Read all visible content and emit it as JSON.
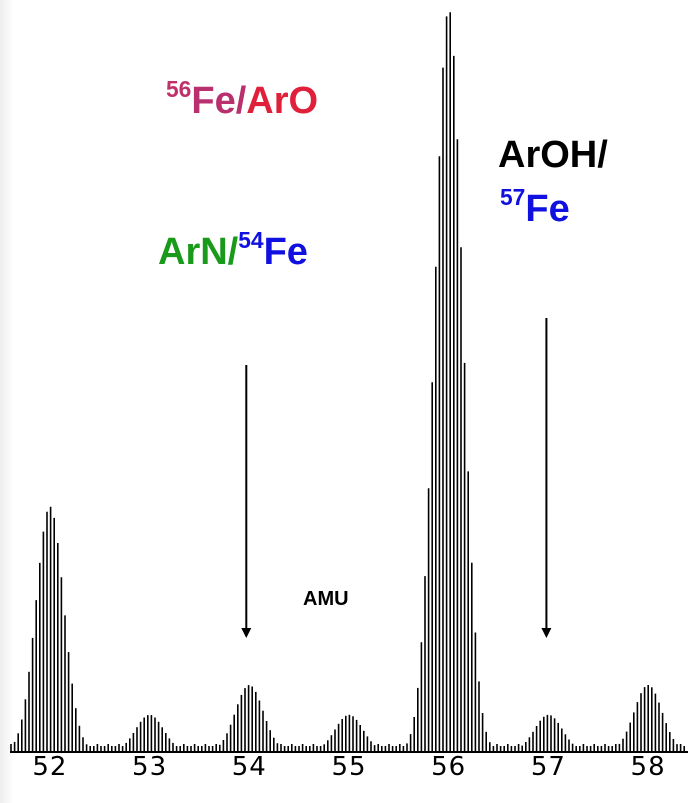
{
  "chart_data": {
    "type": "bar",
    "xlabel": "AMU",
    "ylabel": "",
    "title": "",
    "xlim": [
      51.6,
      58.4
    ],
    "ylim": [
      0,
      1
    ],
    "ticks": [
      "52",
      "53",
      "54",
      "55",
      "56",
      "57",
      "58"
    ],
    "tick_values": [
      52,
      53,
      54,
      55,
      56,
      57,
      58
    ],
    "peaks": [
      {
        "mass": 52,
        "relative_height": 0.33
      },
      {
        "mass": 53,
        "relative_height": 0.05
      },
      {
        "mass": 54,
        "relative_height": 0.09
      },
      {
        "mass": 55,
        "relative_height": 0.05
      },
      {
        "mass": 56,
        "relative_height": 1.0
      },
      {
        "mass": 57,
        "relative_height": 0.05
      },
      {
        "mass": 58,
        "relative_height": 0.09
      }
    ],
    "annotations": [
      {
        "id": "fe56",
        "iso": "56",
        "sym": "Fe/",
        "rest": "ArO"
      },
      {
        "id": "aroh",
        "text": "ArOH/"
      },
      {
        "id": "fe57",
        "iso": "57",
        "sym": "Fe"
      },
      {
        "id": "arn",
        "pre": "ArN/",
        "iso": "54",
        "sym": "Fe"
      }
    ],
    "arrows": [
      {
        "target_mass": 54
      },
      {
        "target_mass": 57
      }
    ]
  }
}
